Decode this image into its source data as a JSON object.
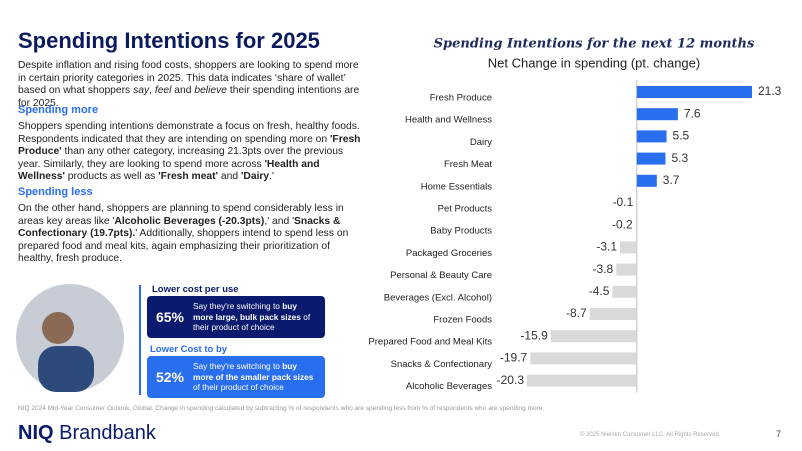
{
  "title": "Spending Intentions for 2025",
  "intro": [
    "Despite inflation and rising food costs, shoppers are looking to spend more in certain priority categories in 2025. This data indicates ‘share of wallet’ based on what shoppers ",
    "say",
    ", ",
    "feel",
    " and ",
    "believe",
    " their spending intentions are for 2025."
  ],
  "more": {
    "heading": "Spending more",
    "text": [
      "Shoppers spending intentions demonstrate a focus on fresh, healthy foods. Respondents indicated that they are intending on spending more on ",
      "'Fresh Produce'",
      " than any other category, increasing 21.3pts over the previous year. Similarly, they are looking to spend more across ",
      "'Health and Wellness'",
      " products as well as ",
      "'Fresh meat'",
      " and ",
      "'Dairy",
      ".'"
    ]
  },
  "less": {
    "heading": "Spending less",
    "text": [
      "On the other hand, shoppers are planning to spend considerably less in areas key areas like '",
      "Alcoholic Beverages (-20.3pts)",
      ",' and '",
      "Snacks & Confectionary (19.7pts).",
      "' Additionally, shoppers intend to spend less on prepared food and meal kits, again emphasizing their prioritization of healthy, fresh produce."
    ]
  },
  "callouts": [
    {
      "heading": "Lower cost per use",
      "percent": "65%",
      "text": [
        "Say they're switching to ",
        "buy more large, bulk pack sizes",
        " of their product of choice"
      ]
    },
    {
      "heading": "Lower Cost to by",
      "percent": "52%",
      "text": [
        "Say they're switching to ",
        "buy more of the smaller pack sizes",
        " of their product of choice"
      ]
    }
  ],
  "footnote": "NIQ 2024 Mid-Year Consumer Outlook, Global. Change in spending calculated by subtracting % of respondents who are spending less from % of respondents who are spending more.",
  "logo": {
    "brand": "NIQ",
    "product": "Brandbank"
  },
  "copyright": "© 2025 Nielsen Consumer LLC. All Rights Reserved.",
  "page_number": "7",
  "chart_data": {
    "type": "bar",
    "orientation": "horizontal",
    "title": "Spending Intentions for the next 12 months",
    "subtitle": "Net Change in spending (pt. change)",
    "categories": [
      "Fresh Produce",
      "Health and Wellness",
      "Dairy",
      "Fresh Meat",
      "Home Essentials",
      "Pet Products",
      "Baby Products",
      "Packaged Groceries",
      "Personal & Beauty Care",
      "Beverages (Excl. Alcohol)",
      "Frozen Foods",
      "Prepared Food and Meal Kits",
      "Snacks & Confectionary",
      "Alcoholic Beverages"
    ],
    "values": [
      21.3,
      7.6,
      5.5,
      5.3,
      3.7,
      -0.1,
      -0.2,
      -3.1,
      -3.8,
      -4.5,
      -8.7,
      -15.9,
      -19.7,
      -20.3
    ],
    "positive_color": "#2a6ef0",
    "negative_color": "#d9d9d9"
  }
}
